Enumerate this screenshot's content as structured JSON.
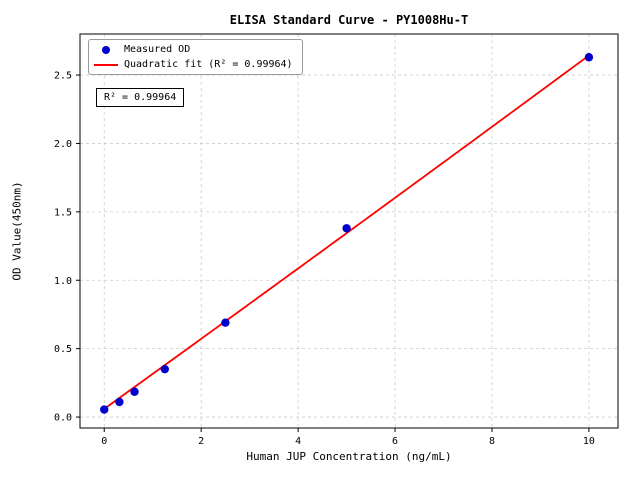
{
  "figure": {
    "background": "#ffffff"
  },
  "chart_data": {
    "type": "scatter",
    "title": "ELISA Standard Curve - PY1008Hu-T",
    "xlabel": "Human JUP Concentration (ng/mL)",
    "ylabel": "OD Value(450nm)",
    "xlim": [
      -0.5,
      10.6
    ],
    "ylim": [
      -0.08,
      2.8
    ],
    "grid": true,
    "grid_style": "dashed",
    "grid_color": "#cccccc",
    "xticks": {
      "values": [
        0,
        2,
        4,
        6,
        8,
        10
      ],
      "labels": [
        "0",
        "2",
        "4",
        "6",
        "8",
        "10"
      ]
    },
    "yticks": {
      "values": [
        0.0,
        0.5,
        1.0,
        1.5,
        2.0,
        2.5
      ],
      "labels": [
        "0.0",
        "0.5",
        "1.0",
        "1.5",
        "2.0",
        "2.5"
      ]
    },
    "series": [
      {
        "name": "Measured OD",
        "type": "scatter",
        "color": "#0000cd",
        "x": [
          0,
          0.3125,
          0.625,
          1.25,
          2.5,
          5,
          10
        ],
        "y": [
          0.055,
          0.11,
          0.185,
          0.35,
          0.69,
          1.38,
          2.63
        ]
      },
      {
        "name": "Quadratic fit (R² = 0.99964)",
        "type": "line",
        "color": "#ff0000",
        "fit": {
          "a": 0.0003,
          "b": 0.2553,
          "c": 0.06
        },
        "x_range": [
          0,
          10
        ]
      }
    ],
    "legend": {
      "position": "upper-left",
      "entries": [
        "Measured OD",
        "Quadratic fit (R² = 0.99964)"
      ]
    },
    "annotation": "R² = 0.99964"
  }
}
